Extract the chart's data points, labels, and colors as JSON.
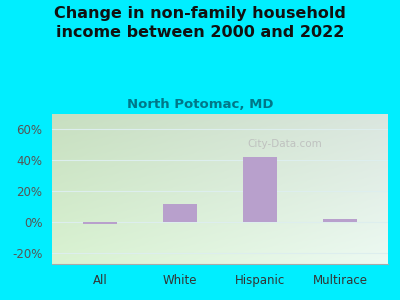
{
  "categories": [
    "All",
    "White",
    "Hispanic",
    "Multirace"
  ],
  "values": [
    -1.0,
    12.0,
    42.0,
    2.0
  ],
  "bar_color": "#b8a0cc",
  "title": "Change in non-family household\nincome between 2000 and 2022",
  "subtitle": "North Potomac, MD",
  "title_fontsize": 11.5,
  "subtitle_fontsize": 9.5,
  "ytick_vals": [
    -20,
    0,
    20,
    40,
    60
  ],
  "ytick_labels": [
    "-20%",
    "0%",
    "20%",
    "40%",
    "60%"
  ],
  "ylim": [
    -27,
    70
  ],
  "bg_color": "#00eeff",
  "watermark": "City-Data.com",
  "title_color": "#111111",
  "subtitle_color": "#007788",
  "grid_color": "#ddeeee",
  "bar_width": 0.42
}
